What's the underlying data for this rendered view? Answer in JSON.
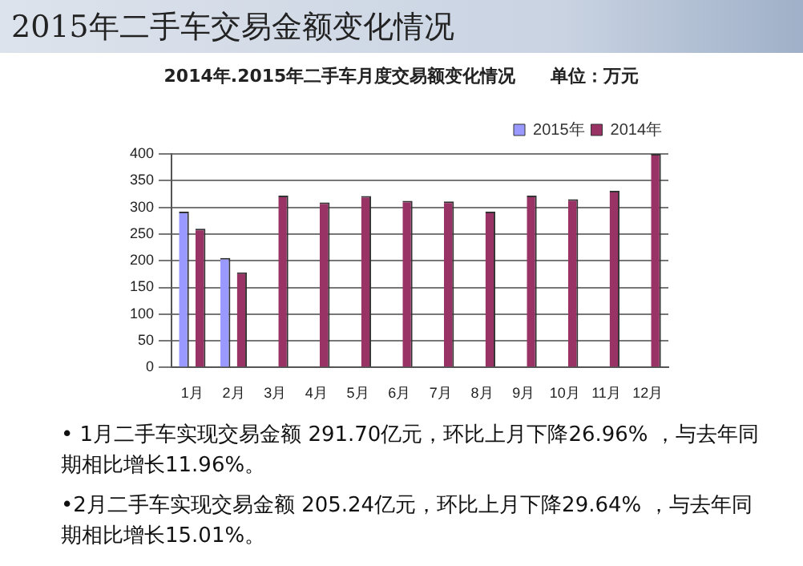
{
  "chart_data": {
    "type": "bar",
    "title": "2015年二手车交易金额变化情况",
    "subtitle": "2014年.2015年二手车月度交易额变化情况　　单位：万元",
    "categories": [
      "1月",
      "2月",
      "3月",
      "4月",
      "5月",
      "6月",
      "7月",
      "8月",
      "9月",
      "10月",
      "11月",
      "12月"
    ],
    "series": [
      {
        "name": "2015年",
        "color": "#9999ff",
        "values": [
          292,
          205,
          null,
          null,
          null,
          null,
          null,
          null,
          null,
          null,
          null,
          null
        ]
      },
      {
        "name": "2014年",
        "color": "#993366",
        "values": [
          260,
          178,
          322,
          309,
          321,
          312,
          311,
          292,
          322,
          315,
          331,
          400
        ]
      }
    ],
    "ylim": [
      0,
      400
    ],
    "yticks": [
      0,
      50,
      100,
      150,
      200,
      250,
      300,
      350,
      400
    ],
    "grid": "y",
    "legend": "top right",
    "annotations": [
      "• 1月二手车实现交易金额 291.70亿元，环比上月下降26.96% ，与去年同期相比增长11.96%。",
      "•2月二手车实现交易金额 205.24亿元，环比上月下降29.64% ，与去年同期相比增长15.01%。"
    ]
  }
}
